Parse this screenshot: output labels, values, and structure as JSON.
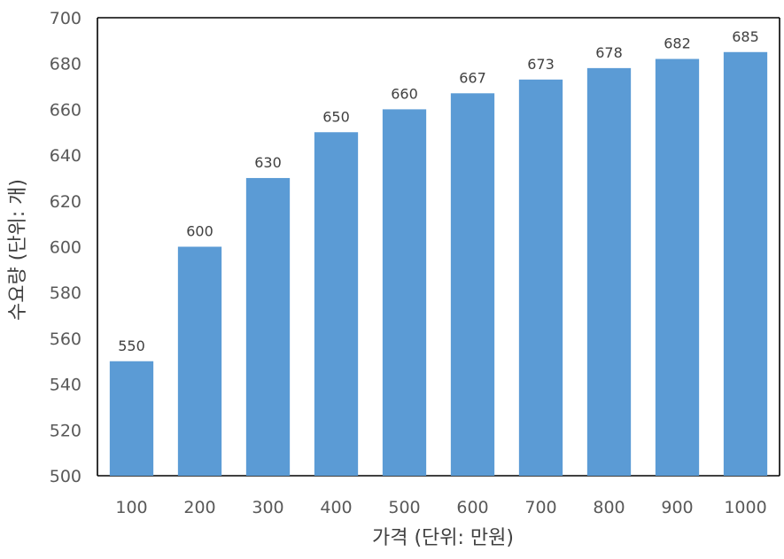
{
  "chart_data": {
    "type": "bar",
    "categories": [
      "100",
      "200",
      "300",
      "400",
      "500",
      "600",
      "700",
      "800",
      "900",
      "1000"
    ],
    "values": [
      550,
      600,
      630,
      650,
      660,
      667,
      673,
      678,
      682,
      685
    ],
    "title": "",
    "xlabel": "가격 (단위: 만원)",
    "ylabel": "수요량 (단위: 개)",
    "ylim": [
      500,
      700
    ],
    "yticks": [
      500,
      520,
      540,
      560,
      580,
      600,
      620,
      640,
      660,
      680,
      700
    ],
    "grid": false,
    "legend": "none",
    "bar_color": "#5b9bd5",
    "axis_color": "#000000"
  }
}
